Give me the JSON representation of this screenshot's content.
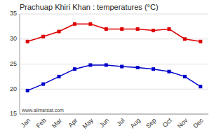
{
  "chart_data": {
    "type": "line",
    "title": "Prachuap Khiri Khan : temperatures (°C)",
    "categories": [
      "Jan",
      "Feb",
      "Mar",
      "Apr",
      "May",
      "Jun",
      "Jul",
      "Aug",
      "Sep",
      "Oct",
      "Nov",
      "Dec"
    ],
    "series": [
      {
        "color": "#dd0000",
        "marker": "square",
        "values": [
          29.5,
          30.5,
          31.5,
          33.0,
          33.0,
          32.0,
          32.0,
          32.0,
          31.7,
          32.0,
          30.0,
          29.5
        ]
      },
      {
        "color": "#0000cc",
        "marker": "square",
        "values": [
          19.7,
          21.0,
          22.5,
          24.0,
          24.8,
          24.8,
          24.5,
          24.3,
          24.0,
          23.5,
          22.5,
          20.5
        ]
      }
    ],
    "ylim": [
      15,
      35
    ],
    "yticks": [
      15,
      20,
      25,
      30,
      35
    ],
    "grid": true,
    "annotations": [
      "www.allmetsat.com"
    ]
  }
}
